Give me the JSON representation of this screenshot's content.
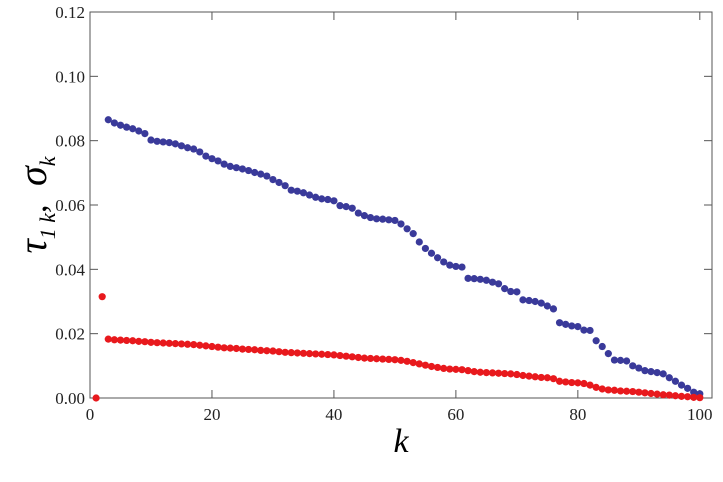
{
  "chart_data": {
    "type": "scatter",
    "xlabel": "k",
    "ylabel_parts": {
      "tau": "τ",
      "tau_sub": "1 k",
      "sep": ",",
      "sigma": "σ",
      "sigma_sub": "k"
    },
    "xlim": [
      0,
      102
    ],
    "ylim": [
      0,
      0.12
    ],
    "x_ticks": [
      0,
      20,
      40,
      60,
      80,
      100
    ],
    "y_ticks": [
      0.0,
      0.02,
      0.04,
      0.06,
      0.08,
      0.1,
      0.12
    ],
    "x_tick_labels": [
      "0",
      "20",
      "40",
      "60",
      "80",
      "100"
    ],
    "y_tick_labels": [
      "0.00",
      "0.02",
      "0.04",
      "0.06",
      "0.08",
      "0.10",
      "0.12"
    ],
    "grid": false,
    "series": [
      {
        "color": "#3a3a9a",
        "points": [
          [
            3,
            0.0865
          ],
          [
            4,
            0.0855
          ],
          [
            5,
            0.0848
          ],
          [
            6,
            0.0842
          ],
          [
            7,
            0.0837
          ],
          [
            8,
            0.083
          ],
          [
            9,
            0.0822
          ],
          [
            10,
            0.0802
          ],
          [
            11,
            0.0798
          ],
          [
            12,
            0.0796
          ],
          [
            13,
            0.0794
          ],
          [
            14,
            0.079
          ],
          [
            15,
            0.0784
          ],
          [
            16,
            0.0778
          ],
          [
            17,
            0.0774
          ],
          [
            18,
            0.0765
          ],
          [
            19,
            0.0752
          ],
          [
            20,
            0.0744
          ],
          [
            21,
            0.0737
          ],
          [
            22,
            0.0727
          ],
          [
            23,
            0.072
          ],
          [
            24,
            0.0716
          ],
          [
            25,
            0.0712
          ],
          [
            26,
            0.0707
          ],
          [
            27,
            0.0701
          ],
          [
            28,
            0.0696
          ],
          [
            29,
            0.069
          ],
          [
            30,
            0.0679
          ],
          [
            31,
            0.067
          ],
          [
            32,
            0.066
          ],
          [
            33,
            0.0646
          ],
          [
            34,
            0.0643
          ],
          [
            35,
            0.0638
          ],
          [
            36,
            0.0631
          ],
          [
            37,
            0.0624
          ],
          [
            38,
            0.0619
          ],
          [
            39,
            0.0617
          ],
          [
            40,
            0.0613
          ],
          [
            41,
            0.0598
          ],
          [
            42,
            0.0595
          ],
          [
            43,
            0.059
          ],
          [
            44,
            0.0575
          ],
          [
            45,
            0.0567
          ],
          [
            46,
            0.0561
          ],
          [
            47,
            0.0557
          ],
          [
            48,
            0.0556
          ],
          [
            49,
            0.0554
          ],
          [
            50,
            0.0552
          ],
          [
            51,
            0.0541
          ],
          [
            52,
            0.0526
          ],
          [
            53,
            0.0511
          ],
          [
            54,
            0.0485
          ],
          [
            55,
            0.0465
          ],
          [
            56,
            0.045
          ],
          [
            57,
            0.0436
          ],
          [
            58,
            0.0423
          ],
          [
            59,
            0.0413
          ],
          [
            60,
            0.0409
          ],
          [
            61,
            0.0407
          ],
          [
            62,
            0.0372
          ],
          [
            63,
            0.0371
          ],
          [
            64,
            0.0369
          ],
          [
            65,
            0.0366
          ],
          [
            66,
            0.036
          ],
          [
            67,
            0.0355
          ],
          [
            68,
            0.034
          ],
          [
            69,
            0.0331
          ],
          [
            70,
            0.033
          ],
          [
            71,
            0.0305
          ],
          [
            72,
            0.0303
          ],
          [
            73,
            0.03
          ],
          [
            74,
            0.0295
          ],
          [
            75,
            0.0286
          ],
          [
            76,
            0.0277
          ],
          [
            77,
            0.0234
          ],
          [
            78,
            0.0229
          ],
          [
            79,
            0.0224
          ],
          [
            80,
            0.0222
          ],
          [
            81,
            0.0211
          ],
          [
            82,
            0.021
          ],
          [
            83,
            0.0178
          ],
          [
            84,
            0.016
          ],
          [
            85,
            0.0138
          ],
          [
            86,
            0.0118
          ],
          [
            87,
            0.0117
          ],
          [
            88,
            0.0115
          ],
          [
            89,
            0.01
          ],
          [
            90,
            0.0093
          ],
          [
            91,
            0.0085
          ],
          [
            92,
            0.0082
          ],
          [
            93,
            0.0079
          ],
          [
            94,
            0.0075
          ],
          [
            95,
            0.0063
          ],
          [
            96,
            0.0052
          ],
          [
            97,
            0.004
          ],
          [
            98,
            0.003
          ],
          [
            99,
            0.0018
          ],
          [
            100,
            0.0013
          ]
        ]
      },
      {
        "color": "#e8191d",
        "points": [
          [
            1,
            0.0
          ],
          [
            2,
            0.0315
          ],
          [
            3,
            0.0183
          ],
          [
            4,
            0.0181
          ],
          [
            5,
            0.018
          ],
          [
            6,
            0.0179
          ],
          [
            7,
            0.0178
          ],
          [
            8,
            0.0176
          ],
          [
            9,
            0.0175
          ],
          [
            10,
            0.0173
          ],
          [
            11,
            0.0172
          ],
          [
            12,
            0.0171
          ],
          [
            13,
            0.017
          ],
          [
            14,
            0.0169
          ],
          [
            15,
            0.0168
          ],
          [
            16,
            0.0167
          ],
          [
            17,
            0.0166
          ],
          [
            18,
            0.0164
          ],
          [
            19,
            0.0162
          ],
          [
            20,
            0.016
          ],
          [
            21,
            0.0158
          ],
          [
            22,
            0.0156
          ],
          [
            23,
            0.0155
          ],
          [
            24,
            0.0154
          ],
          [
            25,
            0.0152
          ],
          [
            26,
            0.0151
          ],
          [
            27,
            0.015
          ],
          [
            28,
            0.0148
          ],
          [
            29,
            0.0147
          ],
          [
            30,
            0.0146
          ],
          [
            31,
            0.0144
          ],
          [
            32,
            0.0142
          ],
          [
            33,
            0.0141
          ],
          [
            34,
            0.014
          ],
          [
            35,
            0.0139
          ],
          [
            36,
            0.0138
          ],
          [
            37,
            0.0137
          ],
          [
            38,
            0.0136
          ],
          [
            39,
            0.0135
          ],
          [
            40,
            0.0134
          ],
          [
            41,
            0.0132
          ],
          [
            42,
            0.013
          ],
          [
            43,
            0.0128
          ],
          [
            44,
            0.0126
          ],
          [
            45,
            0.0124
          ],
          [
            46,
            0.0123
          ],
          [
            47,
            0.0122
          ],
          [
            48,
            0.0121
          ],
          [
            49,
            0.012
          ],
          [
            50,
            0.0119
          ],
          [
            51,
            0.0117
          ],
          [
            52,
            0.0114
          ],
          [
            53,
            0.011
          ],
          [
            54,
            0.0106
          ],
          [
            55,
            0.0102
          ],
          [
            56,
            0.0098
          ],
          [
            57,
            0.0095
          ],
          [
            58,
            0.0092
          ],
          [
            59,
            0.009
          ],
          [
            60,
            0.0089
          ],
          [
            61,
            0.0088
          ],
          [
            62,
            0.0085
          ],
          [
            63,
            0.0082
          ],
          [
            64,
            0.008
          ],
          [
            65,
            0.0079
          ],
          [
            66,
            0.0078
          ],
          [
            67,
            0.0077
          ],
          [
            68,
            0.0076
          ],
          [
            69,
            0.0075
          ],
          [
            70,
            0.0073
          ],
          [
            71,
            0.007
          ],
          [
            72,
            0.0068
          ],
          [
            73,
            0.0066
          ],
          [
            74,
            0.0064
          ],
          [
            75,
            0.0063
          ],
          [
            76,
            0.006
          ],
          [
            77,
            0.0052
          ],
          [
            78,
            0.005
          ],
          [
            79,
            0.0048
          ],
          [
            80,
            0.0047
          ],
          [
            81,
            0.0045
          ],
          [
            82,
            0.004
          ],
          [
            83,
            0.0033
          ],
          [
            84,
            0.0028
          ],
          [
            85,
            0.0025
          ],
          [
            86,
            0.0024
          ],
          [
            87,
            0.0022
          ],
          [
            88,
            0.0021
          ],
          [
            89,
            0.002
          ],
          [
            90,
            0.0018
          ],
          [
            91,
            0.0016
          ],
          [
            92,
            0.0014
          ],
          [
            93,
            0.0012
          ],
          [
            94,
            0.001
          ],
          [
            95,
            0.0009
          ],
          [
            96,
            0.0007
          ],
          [
            97,
            0.0005
          ],
          [
            98,
            0.0004
          ],
          [
            99,
            0.0002
          ],
          [
            100,
            0.0001
          ]
        ]
      }
    ]
  }
}
